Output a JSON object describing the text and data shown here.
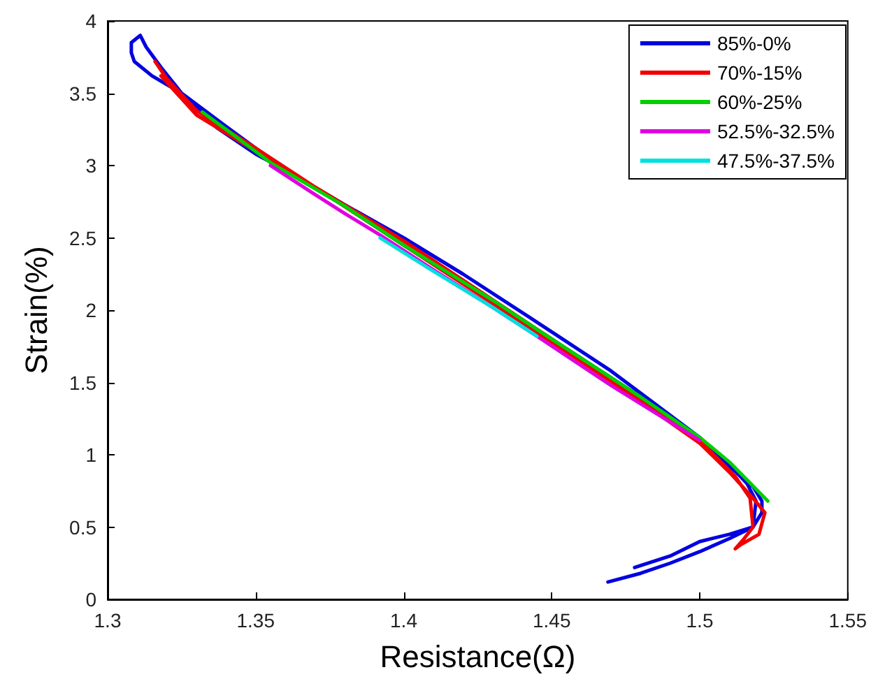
{
  "chart_data": {
    "type": "line",
    "xlabel": "Resistance(Ω)",
    "ylabel": "Strain(%)",
    "xlim": [
      1.3,
      1.55
    ],
    "ylim": [
      0,
      4
    ],
    "xticks": [
      1.3,
      1.35,
      1.4,
      1.45,
      1.5,
      1.55
    ],
    "yticks": [
      0,
      0.5,
      1,
      1.5,
      2,
      2.5,
      3,
      3.5,
      4
    ],
    "grid": false,
    "legend": "top right",
    "marker": "none",
    "line_style": "solid",
    "series": [
      {
        "name": "85%-0%",
        "color": "#0000e0",
        "x": [
          1.469,
          1.48,
          1.49,
          1.5,
          1.51,
          1.518,
          1.521,
          1.521,
          1.518,
          1.51,
          1.5,
          1.485,
          1.47,
          1.45,
          1.42,
          1.4,
          1.38,
          1.36,
          1.35,
          1.337,
          1.325,
          1.318,
          1.313,
          1.311,
          1.308,
          1.308,
          1.309,
          1.315,
          1.325,
          1.34,
          1.36,
          1.38,
          1.4,
          1.43,
          1.45,
          1.48,
          1.5,
          1.51,
          1.516,
          1.519,
          1.518,
          1.51,
          1.5,
          1.49,
          1.478
        ],
        "values": [
          0.12,
          0.18,
          0.25,
          0.33,
          0.42,
          0.5,
          0.6,
          0.68,
          0.78,
          0.92,
          1.12,
          1.35,
          1.58,
          1.85,
          2.25,
          2.5,
          2.73,
          2.97,
          3.08,
          3.26,
          3.5,
          3.68,
          3.82,
          3.9,
          3.85,
          3.78,
          3.72,
          3.62,
          3.5,
          3.27,
          2.97,
          2.72,
          2.45,
          2.06,
          1.8,
          1.4,
          1.1,
          0.93,
          0.8,
          0.68,
          0.5,
          0.45,
          0.4,
          0.3,
          0.22
        ]
      },
      {
        "name": "70%-15%",
        "color": "#f00000",
        "x": [
          1.316,
          1.32,
          1.33,
          1.35,
          1.4,
          1.45,
          1.5,
          1.512,
          1.517,
          1.518,
          1.515,
          1.512,
          1.514,
          1.52,
          1.522,
          1.518,
          1.51,
          1.5,
          1.45,
          1.4,
          1.35,
          1.33,
          1.318
        ],
        "values": [
          3.72,
          3.6,
          3.38,
          3.12,
          2.45,
          1.78,
          1.1,
          0.85,
          0.7,
          0.5,
          0.42,
          0.35,
          0.38,
          0.45,
          0.6,
          0.7,
          0.88,
          1.08,
          1.8,
          2.48,
          3.1,
          3.35,
          3.62
        ]
      },
      {
        "name": "60%-25%",
        "color": "#00d000",
        "x": [
          1.332,
          1.34,
          1.355,
          1.38,
          1.4,
          1.43,
          1.45,
          1.48,
          1.5,
          1.51,
          1.523
        ],
        "values": [
          3.37,
          3.25,
          3.02,
          2.72,
          2.45,
          2.07,
          1.8,
          1.4,
          1.12,
          0.95,
          0.68
        ]
      },
      {
        "name": "52.5%-32.5%",
        "color": "#e000e0",
        "x": [
          1.355,
          1.37,
          1.38,
          1.392,
          1.41,
          1.43,
          1.445,
          1.47,
          1.5
        ],
        "values": [
          3.0,
          2.8,
          2.67,
          2.52,
          2.28,
          2.02,
          1.82,
          1.48,
          1.1
        ]
      },
      {
        "name": "47.5%-37.5%",
        "color": "#00e0e0",
        "x": [
          1.392,
          1.41,
          1.43,
          1.445
        ],
        "values": [
          2.5,
          2.27,
          2.02,
          1.82
        ]
      }
    ]
  }
}
